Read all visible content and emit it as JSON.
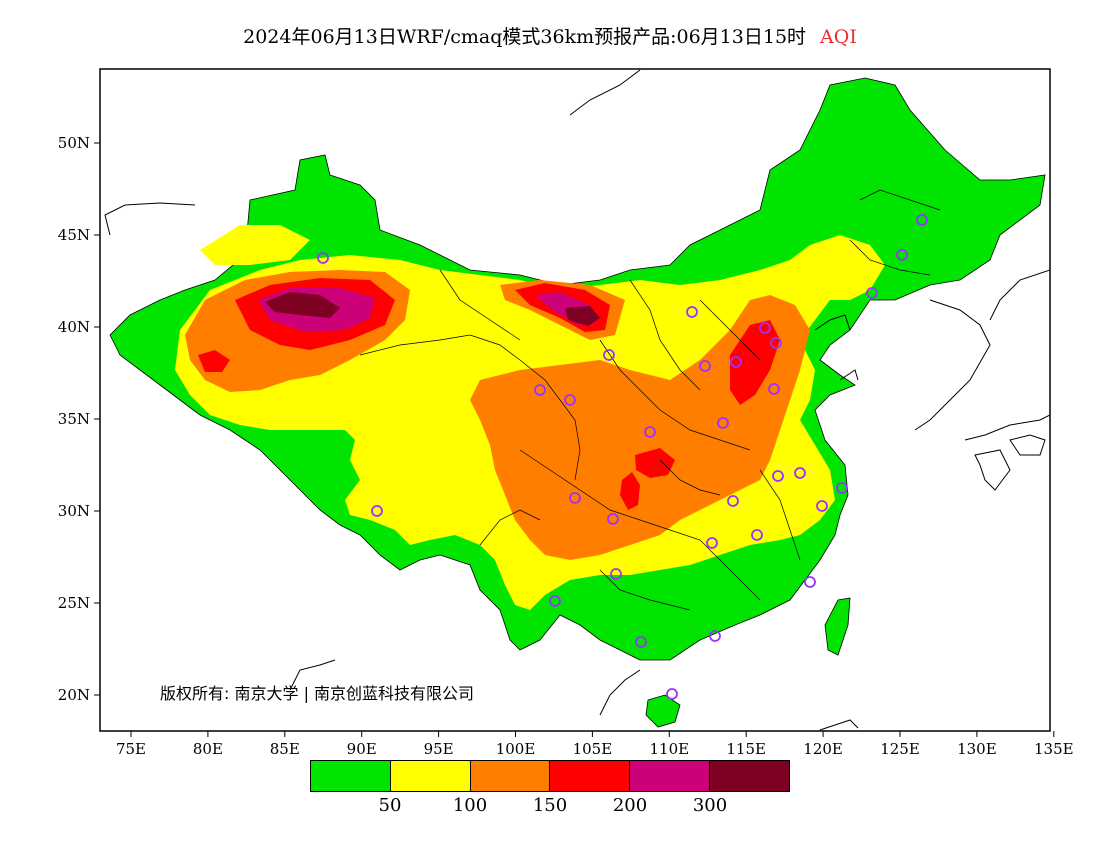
{
  "title": {
    "text": "2024年06月13日WRF/cmaq模式36km预报产品:06月13日15时",
    "variable": "AQI"
  },
  "copyright": "版权所有: 南京大学 | 南京创蓝科技有限公司",
  "axes": {
    "lon_ticks": [
      "75E",
      "80E",
      "85E",
      "90E",
      "95E",
      "100E",
      "105E",
      "110E",
      "115E",
      "120E",
      "125E",
      "130E",
      "135E"
    ],
    "lat_ticks": [
      "20N",
      "25N",
      "30N",
      "35N",
      "40N",
      "45N",
      "50N"
    ]
  },
  "legend": {
    "colors": [
      "#00e400",
      "#ffff00",
      "#ff7e00",
      "#ff0000",
      "#cc0077",
      "#7e0023"
    ],
    "labels": [
      "50",
      "100",
      "150",
      "200",
      "300"
    ]
  },
  "colors": {
    "good": "#00e400",
    "moderate": "#ffff00",
    "usg": "#ff7e00",
    "unhealthy": "#ff0000",
    "very_unhealthy": "#cc0077",
    "hazardous": "#7e0023",
    "station_marker": "#9933ff"
  },
  "stations_icon": "circle-marker-icon"
}
